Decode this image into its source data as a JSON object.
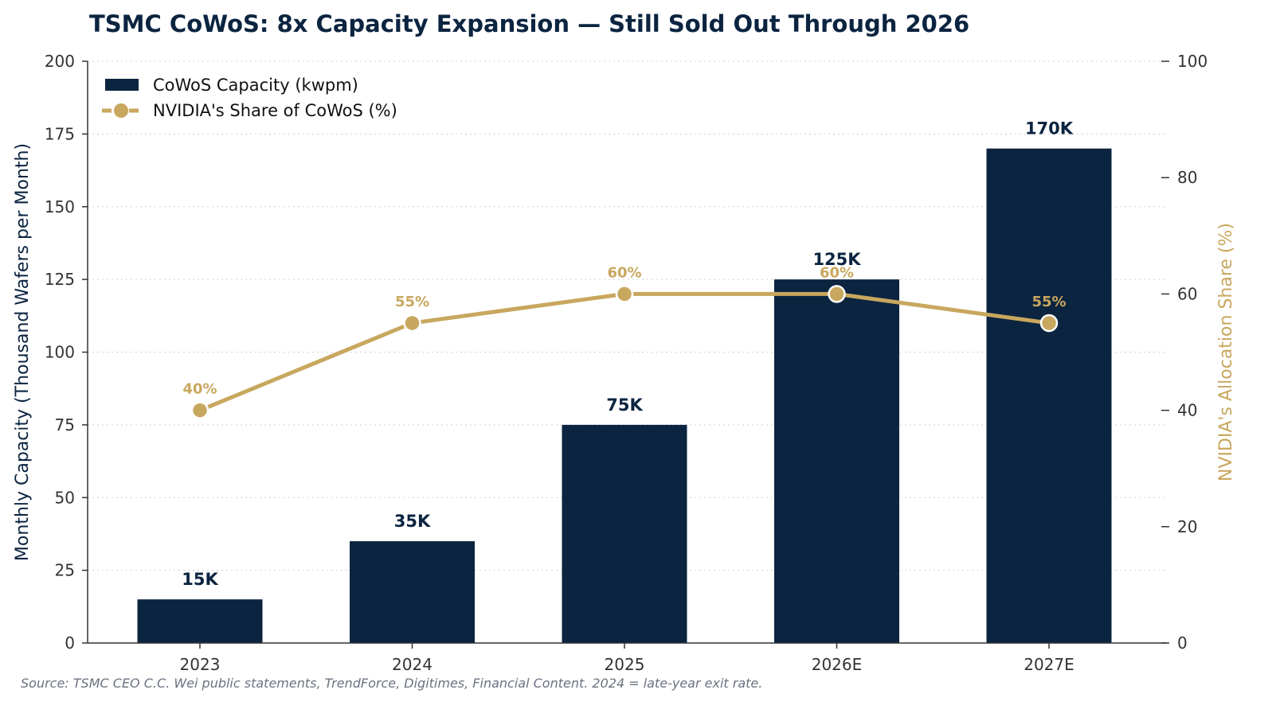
{
  "chart_data": {
    "type": "bar",
    "title": "TSMC CoWoS: 8x Capacity Expansion — Still Sold Out Through 2026",
    "categories": [
      "2023",
      "2024",
      "2025",
      "2026E",
      "2027E"
    ],
    "series": [
      {
        "name": "CoWoS Capacity (kwpm)",
        "type": "bar",
        "axis": "left",
        "values": [
          15,
          35,
          75,
          125,
          170
        ],
        "labels": [
          "15K",
          "35K",
          "75K",
          "125K",
          "170K"
        ]
      },
      {
        "name": "NVIDIA's Share of CoWoS (%)",
        "type": "line",
        "axis": "right",
        "values": [
          40,
          55,
          60,
          60,
          55
        ],
        "labels": [
          "40%",
          "55%",
          "60%",
          "60%",
          "55%"
        ]
      }
    ],
    "ylabel": "Monthly Capacity (Thousand Wafers per Month)",
    "y2label": "NVIDIA's Allocation Share (%)",
    "ylim": [
      0,
      200
    ],
    "y2lim": [
      0,
      100
    ],
    "yticks": [
      0,
      25,
      50,
      75,
      100,
      125,
      150,
      175,
      200
    ],
    "y2ticks": [
      0,
      20,
      40,
      60,
      80,
      100
    ],
    "grid": "horizontal dotted",
    "legend": "top-left",
    "source": "Source: TSMC CEO C.C. Wei public statements, TrendForce, Digitimes, Financial Content. 2024 = late-year exit rate."
  },
  "colors": {
    "bar": "#0b2440",
    "line": "#c8a75e",
    "title": "#0b2440",
    "grid": "#d0d0d0",
    "axis": "#333333"
  }
}
